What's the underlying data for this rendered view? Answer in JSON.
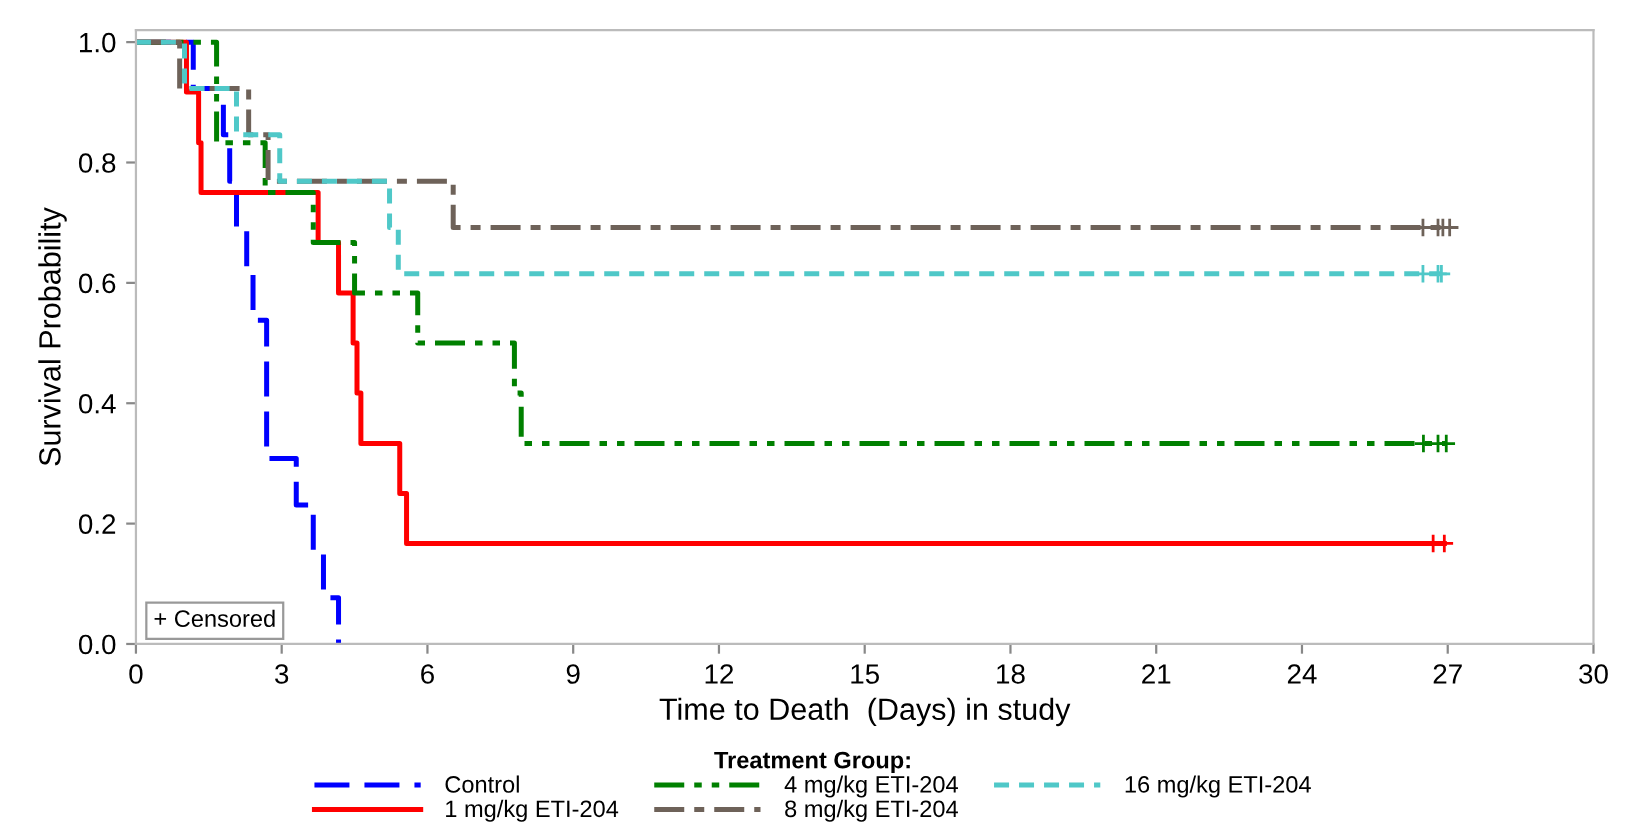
{
  "chart_data": {
    "type": "step",
    "xlabel": "Time to Death  (Days) in study",
    "ylabel": "Survival Probability",
    "legend_title": "Treatment Group:",
    "legend": "bottom",
    "grid": false,
    "xlim": [
      0,
      30
    ],
    "xticks": [
      0,
      3,
      6,
      9,
      12,
      15,
      18,
      21,
      24,
      27,
      30
    ],
    "ylim": [
      0,
      1.02
    ],
    "yticks": [
      {
        "value": 0,
        "label": "0.0"
      },
      {
        "value": 0.2,
        "label": "0.2"
      },
      {
        "value": 0.4,
        "label": "0.4"
      },
      {
        "value": 0.6,
        "label": "0.6"
      },
      {
        "value": 0.8,
        "label": "0.8"
      },
      {
        "value": 1,
        "label": "1.0"
      }
    ],
    "annotations": [
      "+ Censored"
    ],
    "series": [
      {
        "name": "Control",
        "color": "#0000ff",
        "line_style": "dashed",
        "x": [
          0,
          1.18,
          1.8,
          1.93,
          2.07,
          2.28,
          2.41,
          2.69,
          3.3,
          3.65,
          3.86,
          4.17
        ],
        "values": [
          1.0,
          0.923,
          0.846,
          0.769,
          0.692,
          0.615,
          0.538,
          0.308,
          0.231,
          0.154,
          0.077,
          0.0
        ]
      },
      {
        "name": "1 mg/kg ETI-204",
        "color": "#ff0000",
        "line_style": "solid",
        "x": [
          0,
          1.04,
          1.29,
          1.34,
          3.75,
          4.17,
          4.47,
          4.55,
          4.63,
          5.43,
          5.57,
          26.93
        ],
        "values": [
          1.0,
          0.917,
          0.833,
          0.75,
          0.667,
          0.583,
          0.5,
          0.417,
          0.333,
          0.25,
          0.167,
          0.167
        ]
      },
      {
        "name": "4 mg/kg ETI-204",
        "color": "#008000",
        "line_style": "dashdotdot",
        "x": [
          0,
          1.66,
          2.66,
          3.65,
          4.5,
          5.8,
          7.79,
          7.93,
          26.97
        ],
        "values": [
          1.0,
          0.833,
          0.75,
          0.667,
          0.583,
          0.5,
          0.417,
          0.333,
          0.333
        ]
      },
      {
        "name": "8 mg/kg ETI-204",
        "color": "#6e6259",
        "line_style": "dashdot",
        "x": [
          0,
          0.9,
          2.32,
          2.72,
          6.53,
          27.04
        ],
        "values": [
          1.0,
          0.923,
          0.846,
          0.769,
          0.692,
          0.692
        ]
      },
      {
        "name": "16 mg/kg ETI-204",
        "color": "#4fc8c8",
        "line_style": "dotted",
        "x": [
          0,
          1.0,
          2.07,
          2.96,
          5.22,
          5.4,
          26.87
        ],
        "values": [
          1.0,
          0.923,
          0.846,
          0.769,
          0.692,
          0.615,
          0.615
        ]
      },
      {
        "type": "scatter",
        "marker": "cross",
        "color": "#ff0000",
        "x": [
          26.7,
          26.93
        ],
        "values": [
          0.167,
          0.167
        ]
      },
      {
        "type": "scatter",
        "marker": "cross",
        "color": "#008000",
        "x": [
          26.5,
          26.8,
          26.97
        ],
        "values": [
          0.333,
          0.333,
          0.333
        ]
      },
      {
        "type": "scatter",
        "marker": "cross",
        "color": "#6e6259",
        "x": [
          26.49,
          26.8,
          26.9,
          27.04
        ],
        "values": [
          0.692,
          0.692,
          0.692,
          0.692
        ]
      },
      {
        "type": "scatter",
        "marker": "cross",
        "color": "#4fc8c8",
        "x": [
          26.49,
          26.8,
          26.87
        ],
        "values": [
          0.615,
          0.615,
          0.615
        ]
      }
    ]
  }
}
